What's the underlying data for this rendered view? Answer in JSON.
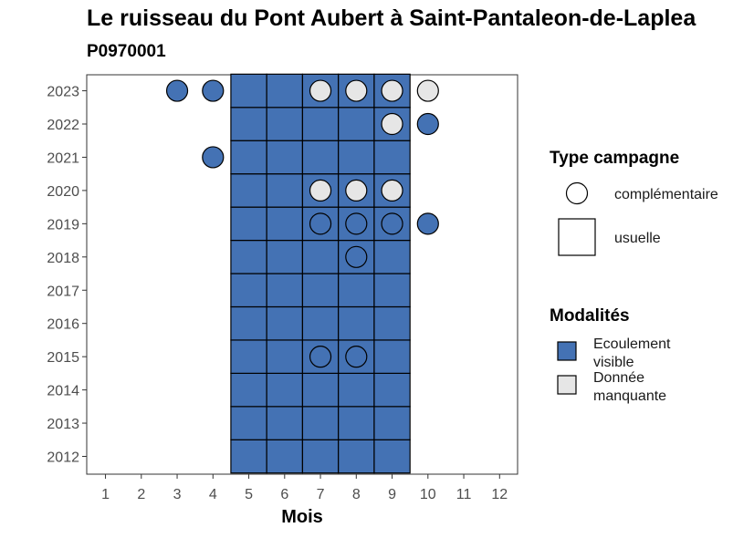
{
  "title": "Le ruisseau du Pont Aubert à Saint-Pantaleon-de-Laplea",
  "subtitle": "P0970001",
  "chart_data": {
    "type": "heatmap",
    "xlabel": "Mois",
    "ylabel": "",
    "x_ticks": [
      "1",
      "2",
      "3",
      "4",
      "5",
      "6",
      "7",
      "8",
      "9",
      "10",
      "11",
      "12"
    ],
    "y_ticks": [
      "2012",
      "2013",
      "2014",
      "2015",
      "2016",
      "2017",
      "2018",
      "2019",
      "2020",
      "2021",
      "2022",
      "2023"
    ],
    "grid": false,
    "legend_position": "right",
    "colors": {
      "Ecoulement visible": "#4472b4",
      "Donnée manquante": "#e6e6e6"
    },
    "legend": {
      "type_title": "Type campagne",
      "type_items": [
        {
          "key": "complementaire",
          "label": "complémentaire",
          "shape": "circle"
        },
        {
          "key": "usuelle",
          "label": "usuelle",
          "shape": "square"
        }
      ],
      "modalite_title": "Modalités",
      "modalite_items": [
        {
          "key": "Ecoulement visible",
          "label_lines": [
            "Ecoulement",
            "visible"
          ]
        },
        {
          "key": "Donnée manquante",
          "label_lines": [
            "Donnée",
            "manquante"
          ]
        }
      ]
    },
    "usuelle": [
      {
        "year": 2012,
        "months": [
          5,
          6,
          7,
          8,
          9
        ],
        "modalite": "Ecoulement visible"
      },
      {
        "year": 2013,
        "months": [
          5,
          6,
          7,
          8,
          9
        ],
        "modalite": "Ecoulement visible"
      },
      {
        "year": 2014,
        "months": [
          5,
          6,
          7,
          8,
          9
        ],
        "modalite": "Ecoulement visible"
      },
      {
        "year": 2015,
        "months": [
          5,
          6,
          7,
          8,
          9
        ],
        "modalite": "Ecoulement visible"
      },
      {
        "year": 2016,
        "months": [
          5,
          6,
          7,
          8,
          9
        ],
        "modalite": "Ecoulement visible"
      },
      {
        "year": 2017,
        "months": [
          5,
          6,
          7,
          8,
          9
        ],
        "modalite": "Ecoulement visible"
      },
      {
        "year": 2018,
        "months": [
          5,
          6,
          7,
          8,
          9
        ],
        "modalite": "Ecoulement visible"
      },
      {
        "year": 2019,
        "months": [
          5,
          6,
          7,
          8,
          9
        ],
        "modalite": "Ecoulement visible"
      },
      {
        "year": 2020,
        "months": [
          5,
          6,
          7,
          8,
          9
        ],
        "modalite": "Ecoulement visible"
      },
      {
        "year": 2021,
        "months": [
          5,
          6,
          7,
          8,
          9
        ],
        "modalite": "Ecoulement visible"
      },
      {
        "year": 2022,
        "months": [
          5,
          6,
          7,
          8,
          9
        ],
        "modalite": "Ecoulement visible"
      },
      {
        "year": 2023,
        "months": [
          5,
          6,
          7,
          8,
          9
        ],
        "modalite": "Ecoulement visible"
      }
    ],
    "complementaire": [
      {
        "year": 2023,
        "month": 3,
        "modalite": "Ecoulement visible"
      },
      {
        "year": 2023,
        "month": 4,
        "modalite": "Ecoulement visible"
      },
      {
        "year": 2023,
        "month": 7,
        "modalite": "Donnée manquante"
      },
      {
        "year": 2023,
        "month": 8,
        "modalite": "Donnée manquante"
      },
      {
        "year": 2023,
        "month": 9,
        "modalite": "Donnée manquante"
      },
      {
        "year": 2023,
        "month": 10,
        "modalite": "Donnée manquante"
      },
      {
        "year": 2022,
        "month": 9,
        "modalite": "Donnée manquante"
      },
      {
        "year": 2022,
        "month": 10,
        "modalite": "Ecoulement visible"
      },
      {
        "year": 2021,
        "month": 4,
        "modalite": "Ecoulement visible"
      },
      {
        "year": 2020,
        "month": 7,
        "modalite": "Donnée manquante"
      },
      {
        "year": 2020,
        "month": 8,
        "modalite": "Donnée manquante"
      },
      {
        "year": 2020,
        "month": 9,
        "modalite": "Donnée manquante"
      },
      {
        "year": 2019,
        "month": 7,
        "modalite": "Ecoulement visible"
      },
      {
        "year": 2019,
        "month": 8,
        "modalite": "Ecoulement visible"
      },
      {
        "year": 2019,
        "month": 9,
        "modalite": "Ecoulement visible"
      },
      {
        "year": 2019,
        "month": 10,
        "modalite": "Ecoulement visible"
      },
      {
        "year": 2018,
        "month": 8,
        "modalite": "Ecoulement visible"
      },
      {
        "year": 2015,
        "month": 7,
        "modalite": "Ecoulement visible"
      },
      {
        "year": 2015,
        "month": 8,
        "modalite": "Ecoulement visible"
      }
    ]
  }
}
